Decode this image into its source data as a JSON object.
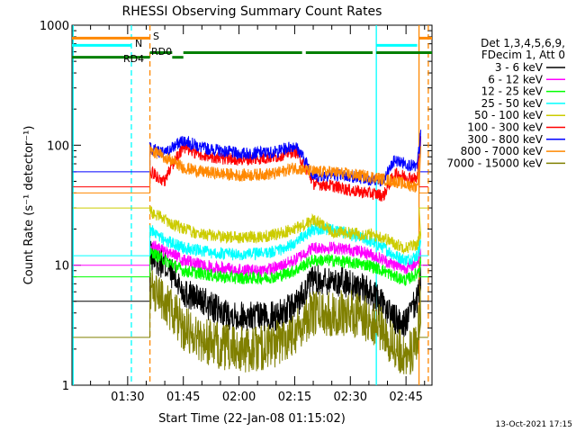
{
  "chart_data": {
    "type": "line",
    "title": "RHESSI Observing Summary Count Rates",
    "xlabel": "Start Time (22-Jan-08 01:15:02)",
    "ylabel": "Count Rate (s⁻¹ detector⁻¹)",
    "yscale": "log",
    "xlim_min": [
      75,
      172
    ],
    "ylim": [
      1,
      1000
    ],
    "x_ticks": [
      {
        "min": 90,
        "label": "01:30"
      },
      {
        "min": 105,
        "label": "01:45"
      },
      {
        "min": 120,
        "label": "02:00"
      },
      {
        "min": 135,
        "label": "02:15"
      },
      {
        "min": 150,
        "label": "02:30"
      },
      {
        "min": 165,
        "label": "02:45"
      }
    ],
    "y_ticks": [
      {
        "value": 1,
        "label": "1"
      },
      {
        "value": 10,
        "label": "10"
      },
      {
        "value": 100,
        "label": "100"
      },
      {
        "value": 1000,
        "label": "1000"
      }
    ],
    "legend_header": [
      "Det 1,3,4,5,6,9,",
      "FDecim 1, Att 0"
    ],
    "legend_position": "right",
    "series": [
      {
        "name": "3 - 6 keV",
        "color": "#000000",
        "base": 5,
        "x": [
          96,
          100,
          105,
          110,
          115,
          120,
          125,
          130,
          135,
          140,
          145,
          150,
          155,
          159,
          162,
          165,
          168,
          169
        ],
        "y": [
          12,
          10,
          6,
          5,
          4,
          3.8,
          3.7,
          3.8,
          4.5,
          7.5,
          7.5,
          7,
          6,
          4.5,
          3.5,
          3.3,
          5,
          8
        ]
      },
      {
        "name": "6 - 12 keV",
        "color": "#ff00ff",
        "base": 10,
        "x": [
          96,
          100,
          105,
          110,
          115,
          120,
          125,
          130,
          135,
          140,
          145,
          150,
          155,
          159,
          162,
          165,
          168,
          169
        ],
        "y": [
          15,
          13,
          11,
          10,
          9.5,
          9.2,
          9,
          9.5,
          11,
          14,
          14,
          13.5,
          12.5,
          11,
          10,
          9.5,
          10.5,
          13
        ]
      },
      {
        "name": "12 - 25 keV",
        "color": "#00ff00",
        "base": 8,
        "x": [
          96,
          100,
          105,
          110,
          115,
          120,
          125,
          130,
          135,
          140,
          145,
          150,
          155,
          159,
          162,
          165,
          168,
          169
        ],
        "y": [
          13,
          11,
          9,
          8.5,
          8,
          7.8,
          7.8,
          8,
          9,
          11,
          11,
          10.5,
          10,
          9,
          8,
          7.5,
          8.5,
          11
        ]
      },
      {
        "name": "25 - 50 keV",
        "color": "#00ffff",
        "base": 12,
        "x": [
          96,
          100,
          105,
          110,
          115,
          120,
          125,
          130,
          135,
          140,
          145,
          150,
          155,
          159,
          162,
          165,
          168,
          169
        ],
        "y": [
          20,
          16,
          14,
          13,
          12.5,
          12.3,
          12.5,
          13,
          15,
          20,
          20,
          18,
          16,
          14,
          12,
          11,
          12,
          16
        ]
      },
      {
        "name": "50 - 100 keV",
        "color": "#cccc00",
        "base": 30,
        "x": [
          96,
          100,
          105,
          110,
          115,
          120,
          125,
          130,
          135,
          140,
          145,
          150,
          155,
          159,
          162,
          165,
          168,
          169
        ],
        "y": [
          28,
          24,
          20,
          18,
          17.5,
          17,
          17.2,
          18,
          20,
          24,
          19,
          18.5,
          18,
          17,
          15,
          14,
          15,
          18
        ]
      },
      {
        "name": "100 - 300 keV",
        "color": "#ff0000",
        "base": 45,
        "x": [
          96,
          100,
          105,
          110,
          115,
          120,
          125,
          130,
          135,
          140,
          145,
          150,
          155,
          159,
          162,
          165,
          168,
          169
        ],
        "y": [
          60,
          50,
          95,
          82,
          78,
          76,
          77,
          80,
          90,
          48,
          46,
          42,
          40,
          38,
          58,
          55,
          52,
          110
        ]
      },
      {
        "name": "300 - 800 keV",
        "color": "#0000ff",
        "base": 60,
        "x": [
          96,
          100,
          105,
          110,
          115,
          120,
          125,
          130,
          135,
          140,
          145,
          150,
          155,
          159,
          162,
          165,
          168,
          169
        ],
        "y": [
          95,
          85,
          110,
          95,
          90,
          85,
          86,
          88,
          100,
          55,
          57,
          55,
          52,
          50,
          75,
          70,
          65,
          125
        ]
      },
      {
        "name": "800 - 7000 keV",
        "color": "#ff8800",
        "base": 40,
        "x": [
          96,
          100,
          105,
          110,
          115,
          120,
          125,
          130,
          135,
          140,
          145,
          150,
          155,
          159,
          162,
          165,
          168,
          169
        ],
        "y": [
          90,
          80,
          65,
          60,
          58,
          56,
          57,
          58,
          65,
          60,
          60,
          57,
          55,
          52,
          50,
          47,
          45,
          90
        ]
      },
      {
        "name": "7000 - 15000 keV",
        "color": "#808000",
        "base": 2.5,
        "x": [
          96,
          100,
          105,
          110,
          115,
          120,
          125,
          130,
          135,
          140,
          145,
          150,
          155,
          159,
          162,
          165,
          168,
          169
        ],
        "y": [
          6,
          5,
          3,
          2.4,
          2.1,
          2,
          2,
          2.2,
          2.8,
          4,
          4,
          4,
          3.5,
          2.8,
          2,
          1.8,
          2,
          5
        ]
      }
    ],
    "annotations": [
      {
        "label": "S",
        "color": "#ff8800",
        "value": 780,
        "segments": [
          [
            75,
            96
          ],
          [
            168.5,
            172
          ]
        ]
      },
      {
        "label": "N",
        "color": "#00ffff",
        "value": 680,
        "segments": [
          [
            75,
            91
          ],
          [
            157,
            168
          ]
        ]
      },
      {
        "label": "RD0",
        "color": "#008000",
        "value": 590,
        "segments": [
          [
            96,
            102
          ],
          [
            105,
            137
          ],
          [
            138,
            156
          ],
          [
            157,
            172
          ]
        ]
      },
      {
        "label": "RD4",
        "color": "#008000",
        "value": 540,
        "segments": [
          [
            75,
            96
          ],
          [
            102,
            105
          ]
        ]
      }
    ],
    "vertical_lines": [
      {
        "min": 75.3,
        "color": "#00ffff",
        "style": "solid"
      },
      {
        "min": 91,
        "color": "#00ffff",
        "style": "dashed"
      },
      {
        "min": 96,
        "color": "#ff8800",
        "style": "dashed"
      },
      {
        "min": 157,
        "color": "#00ffff",
        "style": "solid"
      },
      {
        "min": 168.5,
        "color": "#ff8800",
        "style": "solid"
      },
      {
        "min": 171,
        "color": "#ff8800",
        "style": "dashed"
      }
    ],
    "footer": "13-Oct-2021 17:15"
  }
}
